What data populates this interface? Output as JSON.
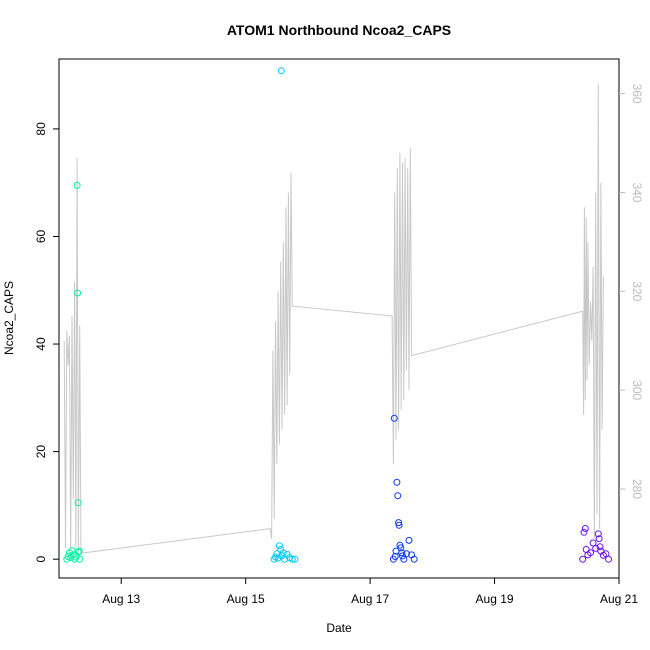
{
  "chart_data": {
    "type": "scatter",
    "title": "ATOM1 Northbound Ncoa2_CAPS",
    "xlabel": "Date",
    "ylabel": "Ncoa2_CAPS",
    "y2label": "",
    "xlim": [
      "2024-08-12",
      "2024-08-21"
    ],
    "ylim": [
      -3.5,
      93
    ],
    "y2lim": [
      262,
      367
    ],
    "x_ticks": [
      "Aug 13",
      "Aug 15",
      "Aug 17",
      "Aug 19",
      "Aug 21"
    ],
    "x_tick_dates": [
      "2024-08-13",
      "2024-08-15",
      "2024-08-17",
      "2024-08-19",
      "2024-08-21"
    ],
    "y_ticks": [
      0,
      20,
      40,
      60,
      80
    ],
    "y2_ticks": [
      280,
      300,
      320,
      340,
      360
    ],
    "grid": false,
    "legend": "none",
    "right_axis_color": "#bbbbbb",
    "line_color": "#c8c8c8",
    "series": [
      {
        "color": "#00f5a0",
        "points": [
          [
            "2024-08-12T03:00",
            0
          ],
          [
            "2024-08-12T03:30",
            0.5
          ],
          [
            "2024-08-12T04:00",
            1.2
          ],
          [
            "2024-08-12T04:30",
            0.3
          ],
          [
            "2024-08-12T05:00",
            1.6
          ],
          [
            "2024-08-12T05:30",
            0.8
          ],
          [
            "2024-08-12T06:00",
            0
          ],
          [
            "2024-08-12T06:30",
            0.4
          ],
          [
            "2024-08-12T07:00",
            69.5
          ],
          [
            "2024-08-12T07:10",
            49.5
          ],
          [
            "2024-08-12T07:20",
            10.5
          ],
          [
            "2024-08-12T07:30",
            1.3
          ],
          [
            "2024-08-12T07:45",
            1.5
          ],
          [
            "2024-08-12T08:00",
            0
          ]
        ]
      },
      {
        "color": "#00c8f0",
        "points": [
          [
            "2024-08-15T11:00",
            0
          ],
          [
            "2024-08-15T11:30",
            0.4
          ],
          [
            "2024-08-15T12:00",
            1.0
          ],
          [
            "2024-08-15T12:30",
            0.2
          ],
          [
            "2024-08-15T13:00",
            2.5
          ],
          [
            "2024-08-15T13:30",
            1.8
          ],
          [
            "2024-08-15T13:45",
            90.8
          ],
          [
            "2024-08-15T14:00",
            0.6
          ],
          [
            "2024-08-15T14:30",
            1.2
          ],
          [
            "2024-08-15T15:00",
            0
          ],
          [
            "2024-08-15T16:00",
            0.9
          ],
          [
            "2024-08-15T17:00",
            0.3
          ],
          [
            "2024-08-15T18:00",
            0
          ],
          [
            "2024-08-15T19:00",
            0
          ]
        ]
      },
      {
        "color": "#0a3af0",
        "points": [
          [
            "2024-08-17T09:00",
            0
          ],
          [
            "2024-08-17T09:20",
            26.2
          ],
          [
            "2024-08-17T09:40",
            0.5
          ],
          [
            "2024-08-17T10:00",
            1.5
          ],
          [
            "2024-08-17T10:20",
            14.3
          ],
          [
            "2024-08-17T10:40",
            11.8
          ],
          [
            "2024-08-17T11:00",
            6.8
          ],
          [
            "2024-08-17T11:10",
            6.3
          ],
          [
            "2024-08-17T11:30",
            2.6
          ],
          [
            "2024-08-17T11:50",
            2.1
          ],
          [
            "2024-08-17T12:10",
            1.2
          ],
          [
            "2024-08-17T12:30",
            0.6
          ],
          [
            "2024-08-17T13:00",
            0
          ],
          [
            "2024-08-17T14:00",
            1.0
          ],
          [
            "2024-08-17T15:00",
            3.5
          ],
          [
            "2024-08-17T16:00",
            0.8
          ],
          [
            "2024-08-17T17:00",
            0
          ]
        ]
      },
      {
        "color": "#6a10e8",
        "points": [
          [
            "2024-08-20T10:00",
            0
          ],
          [
            "2024-08-20T10:30",
            5.0
          ],
          [
            "2024-08-20T11:00",
            5.7
          ],
          [
            "2024-08-20T11:20",
            1.8
          ],
          [
            "2024-08-20T12:00",
            0.8
          ],
          [
            "2024-08-20T13:00",
            1.2
          ],
          [
            "2024-08-20T14:00",
            3.0
          ],
          [
            "2024-08-20T15:00",
            2.0
          ],
          [
            "2024-08-20T16:00",
            4.7
          ],
          [
            "2024-08-20T16:20",
            3.8
          ],
          [
            "2024-08-20T16:40",
            2.3
          ],
          [
            "2024-08-20T17:00",
            1.5
          ],
          [
            "2024-08-20T18:00",
            0.7
          ],
          [
            "2024-08-20T19:00",
            1.0
          ],
          [
            "2024-08-20T20:00",
            0
          ]
        ]
      }
    ],
    "line_series": {
      "axis": "right",
      "points": [
        [
          "2024-08-12T02:00",
          310
        ],
        [
          "2024-08-12T02:30",
          268
        ],
        [
          "2024-08-12T03:00",
          312
        ],
        [
          "2024-08-12T03:30",
          305
        ],
        [
          "2024-08-12T04:00",
          311
        ],
        [
          "2024-08-12T04:30",
          268
        ],
        [
          "2024-08-12T05:00",
          315
        ],
        [
          "2024-08-12T05:30",
          278
        ],
        [
          "2024-08-12T06:00",
          322
        ],
        [
          "2024-08-12T06:30",
          268
        ],
        [
          "2024-08-12T07:00",
          347
        ],
        [
          "2024-08-12T07:30",
          267
        ],
        [
          "2024-08-12T08:00",
          313
        ],
        [
          "2024-08-12T08:30",
          267
        ],
        [
          "2024-08-15T09:30",
          272
        ],
        [
          "2024-08-15T10:00",
          270
        ],
        [
          "2024-08-15T10:30",
          308
        ],
        [
          "2024-08-15T11:00",
          274
        ],
        [
          "2024-08-15T11:30",
          314
        ],
        [
          "2024-08-15T12:00",
          285
        ],
        [
          "2024-08-15T12:30",
          320
        ],
        [
          "2024-08-15T13:00",
          289
        ],
        [
          "2024-08-15T13:30",
          326
        ],
        [
          "2024-08-15T14:00",
          292
        ],
        [
          "2024-08-15T14:30",
          330
        ],
        [
          "2024-08-15T15:00",
          295
        ],
        [
          "2024-08-15T15:30",
          337
        ],
        [
          "2024-08-15T16:00",
          297
        ],
        [
          "2024-08-15T16:30",
          340
        ],
        [
          "2024-08-15T17:00",
          303
        ],
        [
          "2024-08-15T17:30",
          344
        ],
        [
          "2024-08-15T18:00",
          317
        ],
        [
          "2024-08-17T08:30",
          315
        ],
        [
          "2024-08-17T09:00",
          285
        ],
        [
          "2024-08-17T09:30",
          340
        ],
        [
          "2024-08-17T10:00",
          290
        ],
        [
          "2024-08-17T10:30",
          345
        ],
        [
          "2024-08-17T11:00",
          292
        ],
        [
          "2024-08-17T11:30",
          348
        ],
        [
          "2024-08-17T12:00",
          296
        ],
        [
          "2024-08-17T12:30",
          346
        ],
        [
          "2024-08-17T13:00",
          298
        ],
        [
          "2024-08-17T13:30",
          347
        ],
        [
          "2024-08-17T14:00",
          304
        ],
        [
          "2024-08-17T14:30",
          345
        ],
        [
          "2024-08-17T15:00",
          300
        ],
        [
          "2024-08-17T15:30",
          349
        ],
        [
          "2024-08-17T16:00",
          307
        ],
        [
          "2024-08-20T10:00",
          316
        ],
        [
          "2024-08-20T10:20",
          295
        ],
        [
          "2024-08-20T10:40",
          337
        ],
        [
          "2024-08-20T11:00",
          298
        ],
        [
          "2024-08-20T11:20",
          335
        ],
        [
          "2024-08-20T11:40",
          302
        ],
        [
          "2024-08-20T12:00",
          330
        ],
        [
          "2024-08-20T12:30",
          305
        ],
        [
          "2024-08-20T13:00",
          318
        ],
        [
          "2024-08-20T13:30",
          310
        ],
        [
          "2024-08-20T14:00",
          325
        ],
        [
          "2024-08-20T14:30",
          270
        ],
        [
          "2024-08-20T15:00",
          340
        ],
        [
          "2024-08-20T15:30",
          275
        ],
        [
          "2024-08-20T16:00",
          362
        ],
        [
          "2024-08-20T16:30",
          272
        ],
        [
          "2024-08-20T17:00",
          342
        ],
        [
          "2024-08-20T17:30",
          292
        ],
        [
          "2024-08-20T18:00",
          323
        ]
      ]
    }
  }
}
